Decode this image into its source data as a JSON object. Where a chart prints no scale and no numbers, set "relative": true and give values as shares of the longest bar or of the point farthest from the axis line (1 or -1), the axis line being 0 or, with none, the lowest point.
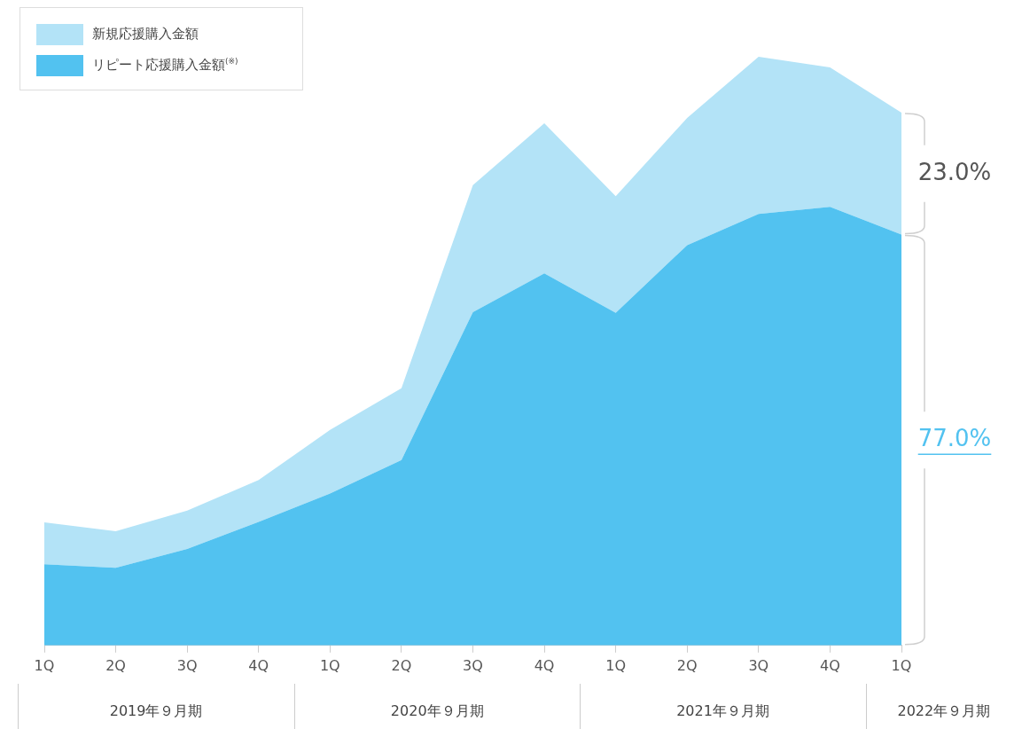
{
  "chart_data": {
    "type": "area",
    "relative": true,
    "stacked": true,
    "legend": "top left",
    "categories": [
      "1Q",
      "2Q",
      "3Q",
      "4Q",
      "1Q",
      "2Q",
      "3Q",
      "4Q",
      "1Q",
      "2Q",
      "3Q",
      "4Q",
      "1Q"
    ],
    "annotations": [
      "77.0%",
      "23.0%",
      "2019年９月期",
      "2020年９月期",
      "2021年９月期",
      "2022年９月期"
    ],
    "series": [
      {
        "name": "リピート応援購入金額$^{(※)}$",
        "color": "#52c2f0",
        "values": [
          0.138,
          0.132,
          0.164,
          0.21,
          0.258,
          0.315,
          0.566,
          0.632,
          0.565,
          0.68,
          0.733,
          0.745,
          0.698
        ]
      },
      {
        "name": "新規応援購入金額",
        "color": "#b3e3f7",
        "values": [
          0.071,
          0.062,
          0.065,
          0.071,
          0.108,
          0.122,
          0.216,
          0.255,
          0.198,
          0.216,
          0.267,
          0.237,
          0.207
        ]
      }
    ]
  }
}
